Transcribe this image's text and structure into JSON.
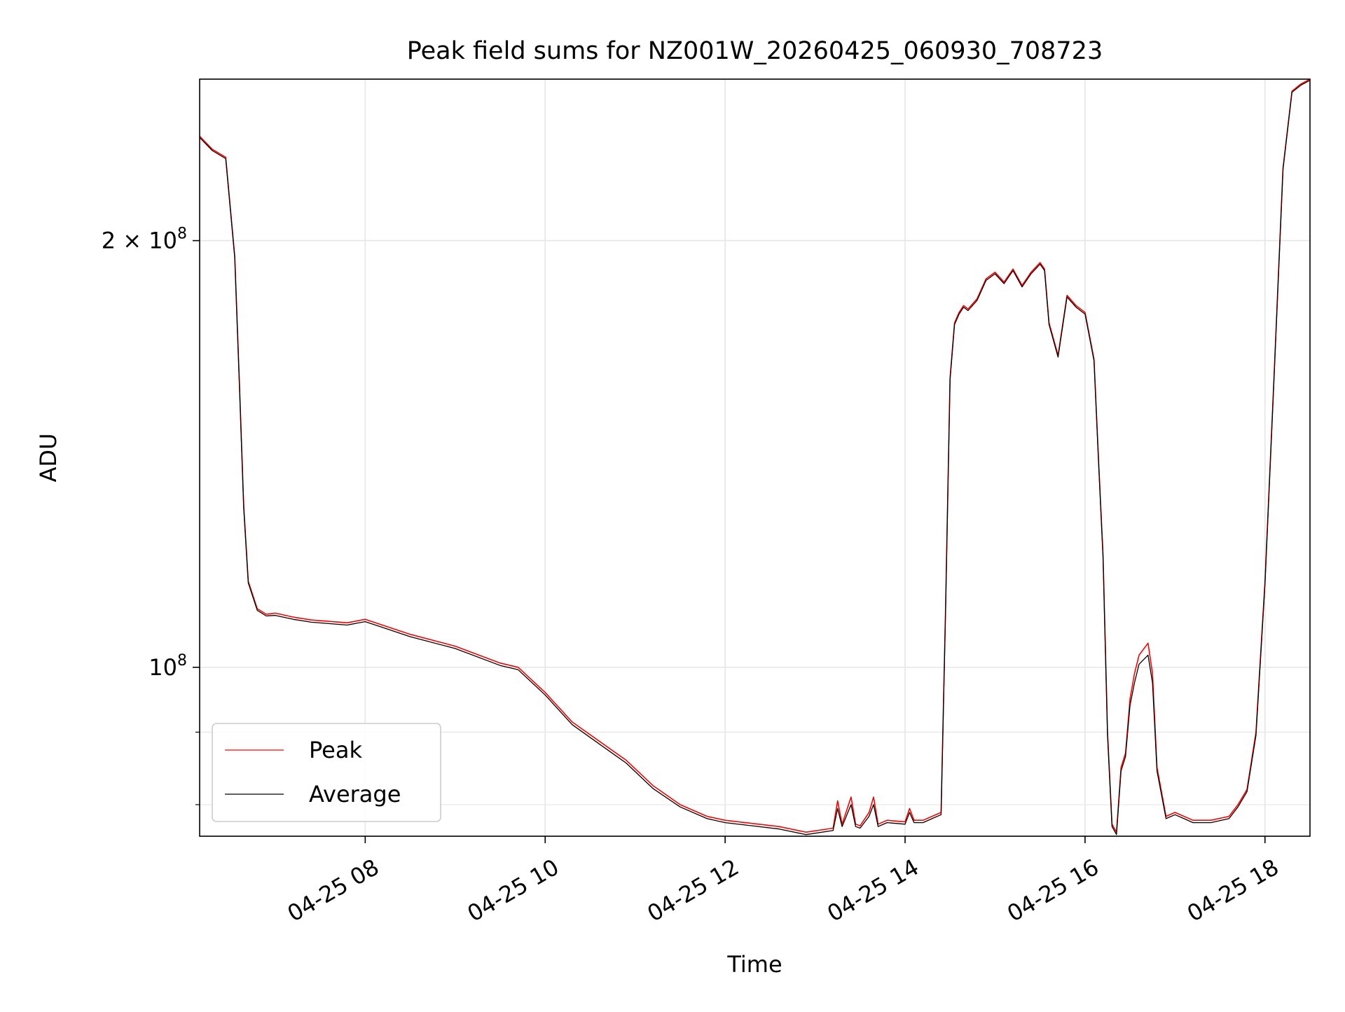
{
  "chart_data": {
    "type": "line",
    "title": "Peak field sums for NZ001W_20260425_060930_708723",
    "xlabel": "Time",
    "ylabel": "ADU",
    "y_scale": "log",
    "xlim": [
      6.16,
      18.5
    ],
    "ylim": [
      76000000,
      260000000
    ],
    "x_ticks": [
      {
        "value": 8,
        "label": "04-25 08"
      },
      {
        "value": 10,
        "label": "04-25 10"
      },
      {
        "value": 12,
        "label": "04-25 12"
      },
      {
        "value": 14,
        "label": "04-25 14"
      },
      {
        "value": 16,
        "label": "04-25 16"
      },
      {
        "value": 18,
        "label": "04-25 18"
      }
    ],
    "y_major_ticks": [
      {
        "value": 100000000,
        "label_base": "10",
        "label_exp": "8",
        "label_coef": ""
      },
      {
        "value": 200000000,
        "label_base": "10",
        "label_exp": "8",
        "label_coef": "2 × "
      }
    ],
    "y_minor_ticks": [
      80000000,
      90000000
    ],
    "grid": true,
    "legend": "lower-left",
    "series": [
      {
        "name": "Peak",
        "color": "#ff0000",
        "x": [
          6.16,
          6.3,
          6.45,
          6.55,
          6.6,
          6.65,
          6.7,
          6.8,
          6.9,
          7.0,
          7.2,
          7.4,
          7.8,
          8.0,
          8.5,
          9.0,
          9.5,
          9.7,
          10.0,
          10.3,
          10.6,
          10.9,
          11.2,
          11.5,
          11.8,
          12.0,
          12.3,
          12.6,
          12.9,
          13.2,
          13.25,
          13.3,
          13.4,
          13.45,
          13.5,
          13.6,
          13.65,
          13.7,
          13.8,
          14.0,
          14.05,
          14.1,
          14.2,
          14.3,
          14.4,
          14.45,
          14.5,
          14.55,
          14.6,
          14.65,
          14.7,
          14.8,
          14.9,
          15.0,
          15.1,
          15.2,
          15.3,
          15.4,
          15.5,
          15.55,
          15.6,
          15.7,
          15.8,
          15.9,
          16.0,
          16.1,
          16.15,
          16.2,
          16.25,
          16.3,
          16.35,
          16.4,
          16.45,
          16.5,
          16.55,
          16.6,
          16.7,
          16.75,
          16.8,
          16.9,
          17.0,
          17.1,
          17.2,
          17.4,
          17.6,
          17.7,
          17.8,
          17.9,
          18.0,
          18.1,
          18.2,
          18.3,
          18.4,
          18.5
        ],
        "y": [
          237000000,
          232000000,
          229000000,
          195000000,
          160000000,
          130000000,
          115000000,
          110000000,
          109000000,
          109200000,
          108500000,
          108000000,
          107500000,
          108100000,
          105500000,
          103500000,
          100700000,
          100000000,
          96000000,
          91500000,
          88700000,
          86000000,
          82500000,
          80000000,
          78500000,
          78000000,
          77600000,
          77200000,
          76500000,
          77000000,
          80500000,
          77500000,
          81000000,
          77500000,
          77300000,
          79000000,
          81000000,
          77500000,
          78000000,
          77800000,
          79500000,
          78000000,
          78000000,
          78500000,
          79000000,
          110000000,
          160000000,
          175000000,
          178000000,
          180000000,
          179000000,
          182000000,
          188000000,
          190000000,
          187000000,
          191000000,
          186000000,
          190000000,
          193000000,
          191000000,
          175000000,
          166000000,
          183000000,
          180000000,
          178000000,
          165000000,
          140000000,
          120000000,
          90000000,
          77500000,
          76500000,
          85000000,
          87000000,
          95000000,
          99000000,
          102000000,
          104000000,
          99000000,
          85000000,
          78500000,
          79000000,
          78500000,
          78000000,
          78000000,
          78500000,
          80000000,
          82000000,
          90000000,
          115000000,
          160000000,
          225000000,
          255000000,
          258000000,
          260000000
        ]
      },
      {
        "name": "Average",
        "color": "#000000",
        "x": [
          6.16,
          6.3,
          6.45,
          6.55,
          6.6,
          6.65,
          6.7,
          6.8,
          6.9,
          7.0,
          7.2,
          7.4,
          7.8,
          8.0,
          8.5,
          9.0,
          9.5,
          9.7,
          10.0,
          10.3,
          10.6,
          10.9,
          11.2,
          11.5,
          11.8,
          12.0,
          12.3,
          12.6,
          12.9,
          13.2,
          13.25,
          13.3,
          13.4,
          13.45,
          13.5,
          13.6,
          13.65,
          13.7,
          13.8,
          14.0,
          14.05,
          14.1,
          14.2,
          14.3,
          14.4,
          14.45,
          14.5,
          14.55,
          14.6,
          14.65,
          14.7,
          14.8,
          14.9,
          15.0,
          15.1,
          15.2,
          15.3,
          15.4,
          15.5,
          15.55,
          15.6,
          15.7,
          15.8,
          15.9,
          16.0,
          16.1,
          16.15,
          16.2,
          16.25,
          16.3,
          16.35,
          16.4,
          16.45,
          16.5,
          16.55,
          16.6,
          16.7,
          16.75,
          16.8,
          16.9,
          17.0,
          17.1,
          17.2,
          17.4,
          17.6,
          17.7,
          17.8,
          17.9,
          18.0,
          18.1,
          18.2,
          18.3,
          18.4,
          18.5
        ],
        "y": [
          236500000,
          231500000,
          228500000,
          194500000,
          159500000,
          129500000,
          114700000,
          109700000,
          108700000,
          108800000,
          108100000,
          107600000,
          107100000,
          107700000,
          105100000,
          103100000,
          100300000,
          99600000,
          95600000,
          91100000,
          88300000,
          85600000,
          82100000,
          79700000,
          78200000,
          77700000,
          77300000,
          76900000,
          76200000,
          76700000,
          79500000,
          77200000,
          80000000,
          77200000,
          77000000,
          78500000,
          80000000,
          77200000,
          77700000,
          77500000,
          79000000,
          77700000,
          77700000,
          78200000,
          78700000,
          109500000,
          159500000,
          174500000,
          177500000,
          179500000,
          178500000,
          181500000,
          187500000,
          189500000,
          186500000,
          190500000,
          185500000,
          189500000,
          192500000,
          190500000,
          174500000,
          165500000,
          182500000,
          179500000,
          177500000,
          164500000,
          139500000,
          119500000,
          89500000,
          77200000,
          76200000,
          84500000,
          86500000,
          94000000,
          97500000,
          100500000,
          102000000,
          97500000,
          84500000,
          78200000,
          78700000,
          78200000,
          77700000,
          77700000,
          78200000,
          79700000,
          81700000,
          89500000,
          114500000,
          159500000,
          224500000,
          254500000,
          257500000,
          259500000
        ]
      }
    ]
  }
}
